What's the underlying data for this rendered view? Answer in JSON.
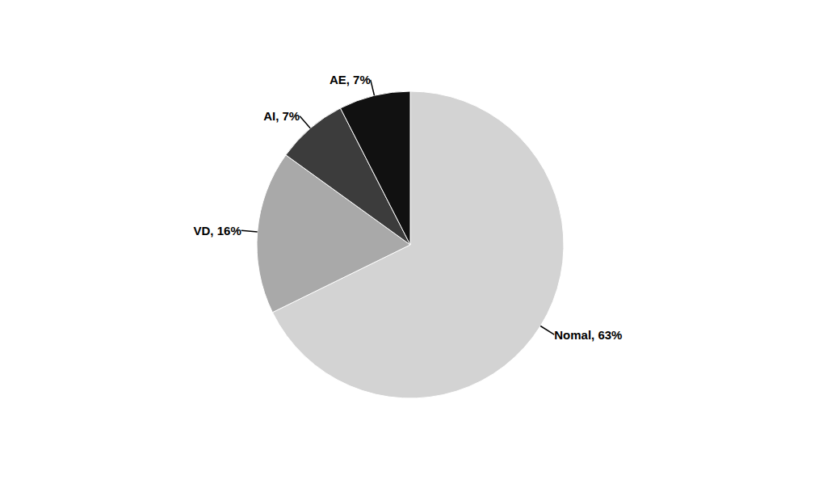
{
  "chart_data": {
    "type": "pie",
    "values": [
      63,
      16,
      7,
      7
    ],
    "value_labels": [
      "Nomal, 63%",
      "VD, 16%",
      "AI, 7%",
      "AE, 7%"
    ],
    "colors": [
      "#d3d3d3",
      "#a9a9a9",
      "#3c3c3c",
      "#111111"
    ],
    "data_labels": true
  }
}
